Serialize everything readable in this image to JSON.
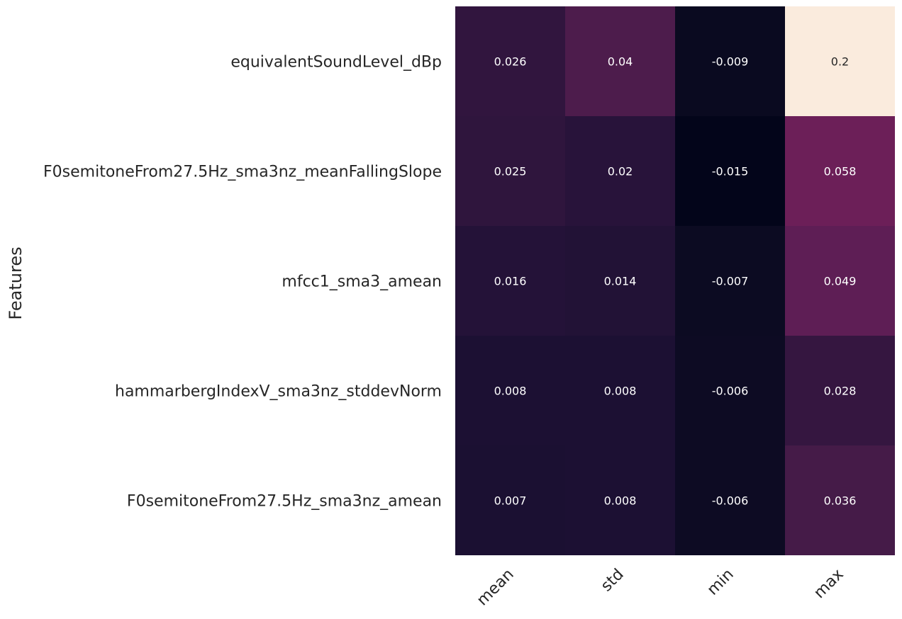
{
  "chart_data": {
    "type": "heatmap",
    "title": "",
    "xlabel": "",
    "ylabel": "Features",
    "columns": [
      "mean",
      "std",
      "min",
      "max"
    ],
    "rows": [
      "equivalentSoundLevel_dBp",
      "F0semitoneFrom27.5Hz_sma3nz_meanFallingSlope",
      "mfcc1_sma3_amean",
      "hammarbergIndexV_sma3nz_stddevNorm",
      "F0semitoneFrom27.5Hz_sma3nz_amean"
    ],
    "values": [
      [
        0.026,
        0.04,
        -0.009,
        0.2
      ],
      [
        0.025,
        0.02,
        -0.015,
        0.058
      ],
      [
        0.016,
        0.014,
        -0.007,
        0.049
      ],
      [
        0.008,
        0.008,
        -0.006,
        0.028
      ],
      [
        0.007,
        0.008,
        -0.006,
        0.036
      ]
    ],
    "value_labels": [
      [
        "0.026",
        "0.04",
        "-0.009",
        "0.2"
      ],
      [
        "0.025",
        "0.02",
        "-0.015",
        "0.058"
      ],
      [
        "0.016",
        "0.014",
        "-0.007",
        "0.049"
      ],
      [
        "0.008",
        "0.008",
        "-0.006",
        "0.028"
      ],
      [
        "0.007",
        "0.008",
        "-0.006",
        "0.036"
      ]
    ],
    "colormap": "rocket",
    "colorbar": false,
    "grid": false
  }
}
